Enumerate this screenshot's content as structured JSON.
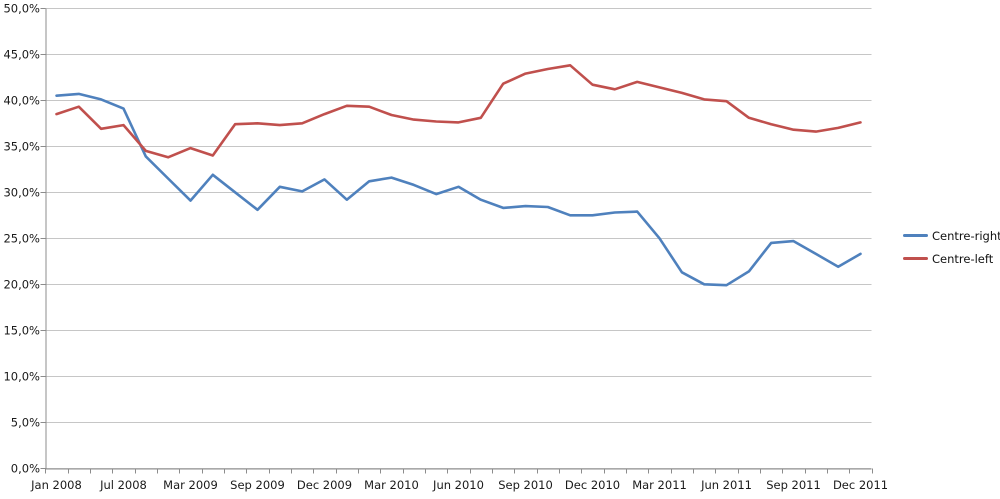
{
  "chart_data": {
    "type": "line",
    "title": "",
    "n_points": 37,
    "x_tick_labels": [
      {
        "index": 0,
        "label": "Jan 2008"
      },
      {
        "index": 3,
        "label": "Jul 2008"
      },
      {
        "index": 6,
        "label": "Mar 2009"
      },
      {
        "index": 9,
        "label": "Sep 2009"
      },
      {
        "index": 12,
        "label": "Dec 2009"
      },
      {
        "index": 15,
        "label": "Mar 2010"
      },
      {
        "index": 18,
        "label": "Jun 2010"
      },
      {
        "index": 21,
        "label": "Sep 2010"
      },
      {
        "index": 24,
        "label": "Dec 2010"
      },
      {
        "index": 27,
        "label": "Mar 2011"
      },
      {
        "index": 30,
        "label": "Jun 2011"
      },
      {
        "index": 33,
        "label": "Sep 2011"
      },
      {
        "index": 36,
        "label": "Dec 2011"
      }
    ],
    "y_axis": {
      "min": 0,
      "max": 50,
      "step": 5,
      "labels": [
        "0,0%",
        "5,0%",
        "10,0%",
        "15,0%",
        "20,0%",
        "25,0%",
        "30,0%",
        "35,0%",
        "40,0%",
        "45,0%",
        "50,0%"
      ]
    },
    "series": [
      {
        "name": "Centre-right",
        "color": "#4F81BD",
        "values": [
          40.5,
          40.7,
          40.1,
          39.1,
          33.9,
          31.5,
          29.1,
          31.9,
          30.0,
          28.1,
          30.6,
          30.1,
          31.4,
          29.2,
          31.2,
          31.6,
          30.8,
          29.8,
          30.6,
          29.2,
          28.3,
          28.5,
          28.4,
          27.5,
          27.5,
          27.8,
          27.9,
          25.0,
          21.3,
          20.0,
          19.9,
          21.4,
          24.5,
          24.7,
          23.3,
          21.9,
          23.3
        ]
      },
      {
        "name": "Centre-left",
        "color": "#C0504D",
        "values": [
          38.5,
          39.3,
          36.9,
          37.3,
          34.5,
          33.8,
          34.8,
          34.0,
          37.4,
          37.5,
          37.3,
          37.5,
          38.5,
          39.4,
          39.3,
          38.4,
          37.9,
          37.7,
          37.6,
          38.1,
          41.8,
          42.9,
          43.4,
          43.8,
          41.7,
          41.2,
          42.0,
          41.4,
          40.8,
          40.1,
          39.9,
          38.1,
          37.4,
          36.8,
          36.6,
          37.0,
          37.6
        ]
      }
    ],
    "grid": true,
    "legend_position": "right",
    "colors": {
      "background": "#FFFFFF",
      "gridline": "#C6C6C6",
      "axis": "#8C8C8C",
      "text": "#1a1a1a"
    }
  }
}
